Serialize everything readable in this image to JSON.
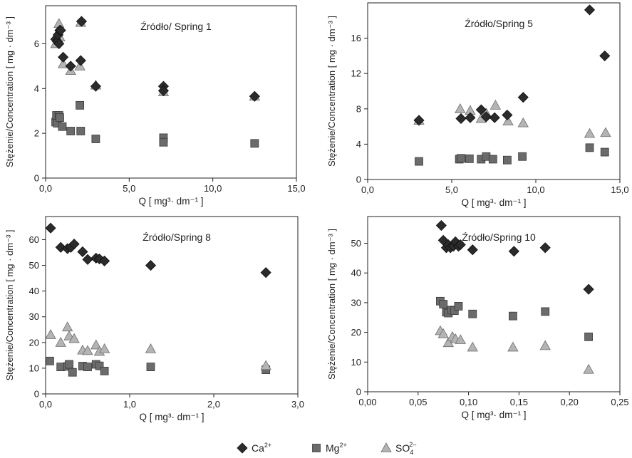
{
  "legend": [
    {
      "label": "Ca",
      "sup": "2+",
      "sub": "",
      "marker": "diamond",
      "color": "#2b2b2b"
    },
    {
      "label": "Mg",
      "sup": "2+",
      "sub": "",
      "marker": "square",
      "color": "#6b6b6b"
    },
    {
      "label": "SO",
      "sup": "2–",
      "sub": "4",
      "marker": "triangle",
      "color": "#b4b4b4"
    }
  ],
  "chart_data": [
    {
      "type": "scatter",
      "title": "Źródło/ Spring 1",
      "xlabel": "Q [ mg³· dm⁻¹ ]",
      "ylabel": "Stężenie/Concentration [ mg · dm⁻³ ]",
      "xlim": [
        0,
        15
      ],
      "ylim": [
        0,
        7.7
      ],
      "xticks": [
        0,
        5,
        10,
        15
      ],
      "xtick_labels": [
        "0,0",
        "5,0",
        "10,0",
        "15,0"
      ],
      "yticks": [
        0,
        2,
        4,
        6
      ],
      "ytick_labels": [
        "0",
        "2",
        "4",
        "6"
      ],
      "series": [
        {
          "name": "Ca2+",
          "x": [
            0.6,
            0.7,
            0.75,
            0.8,
            0.85,
            0.9,
            1.05,
            1.5,
            2.1,
            2.15,
            3.0,
            7.05,
            7.05,
            12.5
          ],
          "y": [
            6.2,
            6.1,
            6.4,
            6.0,
            6.6,
            6.6,
            5.4,
            5.0,
            5.25,
            7.0,
            4.1,
            4.1,
            3.9,
            3.65
          ]
        },
        {
          "name": "Mg2+",
          "x": [
            0.6,
            0.65,
            0.7,
            0.8,
            0.85,
            1.0,
            1.5,
            2.05,
            2.1,
            3.0,
            7.05,
            7.05,
            12.5
          ],
          "y": [
            2.5,
            2.8,
            2.45,
            2.8,
            2.7,
            2.3,
            2.1,
            3.25,
            2.1,
            1.75,
            1.8,
            1.6,
            1.55
          ]
        },
        {
          "name": "SO42-",
          "x": [
            0.6,
            0.7,
            0.75,
            0.8,
            0.85,
            1.05,
            1.5,
            2.05,
            2.1,
            3.0,
            7.05,
            12.5
          ],
          "y": [
            6.0,
            6.45,
            6.2,
            6.9,
            6.3,
            5.1,
            4.8,
            5.0,
            6.95,
            4.15,
            3.85,
            3.65
          ]
        }
      ]
    },
    {
      "type": "scatter",
      "title": "Źródło/Spring 5",
      "xlabel": "Q [ mg³· dm⁻¹ ]",
      "ylabel": "Stężenie/Concentration [ mg · dm⁻³ ]",
      "xlim": [
        0,
        15
      ],
      "ylim": [
        0,
        20
      ],
      "xticks": [
        0,
        5,
        10,
        15
      ],
      "xtick_labels": [
        "0,0",
        "5,0",
        "10,0",
        "15,0"
      ],
      "yticks": [
        0,
        4,
        8,
        12,
        16
      ],
      "ytick_labels": [
        "0",
        "4",
        "8",
        "12",
        "16"
      ],
      "series": [
        {
          "name": "Ca2+",
          "x": [
            3.05,
            5.55,
            6.1,
            6.75,
            7.05,
            7.55,
            8.3,
            9.25,
            13.2,
            14.1
          ],
          "y": [
            6.7,
            6.9,
            7.0,
            7.9,
            7.1,
            7.0,
            7.3,
            9.3,
            19.2,
            14.0
          ]
        },
        {
          "name": "Mg2+",
          "x": [
            3.05,
            5.45,
            5.55,
            6.05,
            6.75,
            7.05,
            7.45,
            8.3,
            9.2,
            13.2,
            14.1
          ],
          "y": [
            2.05,
            2.3,
            2.4,
            2.35,
            2.3,
            2.6,
            2.3,
            2.2,
            2.6,
            3.6,
            3.1
          ]
        },
        {
          "name": "SO42-",
          "x": [
            3.05,
            5.5,
            6.1,
            6.75,
            7.05,
            7.6,
            8.35,
            9.25,
            13.2,
            14.15
          ],
          "y": [
            6.7,
            8.0,
            7.8,
            6.9,
            7.5,
            8.4,
            6.6,
            6.4,
            5.2,
            5.3
          ]
        }
      ]
    },
    {
      "type": "scatter",
      "title": "Źródło/Spring 8",
      "xlabel": "Q [ mg³· dm⁻¹ ]",
      "ylabel": "Stężenie/Concentration [ mg · dm⁻³ ]",
      "xlim": [
        0,
        3
      ],
      "ylim": [
        0,
        69
      ],
      "xticks": [
        0,
        1,
        2,
        3
      ],
      "xtick_labels": [
        "0,0",
        "1,0",
        "2,0",
        "3,0"
      ],
      "yticks": [
        0,
        10,
        20,
        30,
        40,
        50,
        60
      ],
      "ytick_labels": [
        "0",
        "10",
        "20",
        "30",
        "40",
        "50",
        "60"
      ],
      "series": [
        {
          "name": "Ca2+",
          "x": [
            0.06,
            0.18,
            0.26,
            0.3,
            0.34,
            0.44,
            0.5,
            0.6,
            0.64,
            0.7,
            1.25,
            2.62
          ],
          "y": [
            64.5,
            57.0,
            56.5,
            57.0,
            58.3,
            55.3,
            52.3,
            52.8,
            52.5,
            51.7,
            50.0,
            47.2
          ]
        },
        {
          "name": "Mg2+",
          "x": [
            0.05,
            0.18,
            0.26,
            0.28,
            0.32,
            0.44,
            0.5,
            0.6,
            0.64,
            0.7,
            1.25,
            2.62
          ],
          "y": [
            12.8,
            10.5,
            10.7,
            11.5,
            8.4,
            10.8,
            10.5,
            11.5,
            10.9,
            8.9,
            10.5,
            9.4
          ]
        },
        {
          "name": "SO42-",
          "x": [
            0.06,
            0.18,
            0.26,
            0.28,
            0.34,
            0.44,
            0.5,
            0.6,
            0.64,
            0.7,
            1.25,
            2.62
          ],
          "y": [
            23.0,
            20.0,
            26.0,
            22.5,
            21.5,
            17.0,
            16.8,
            19.0,
            16.5,
            17.5,
            17.5,
            11.0
          ]
        }
      ]
    },
    {
      "type": "scatter",
      "title": "Źródło/Spring 10",
      "xlabel": "Q [ mg³· dm⁻¹ ]",
      "ylabel": "Stężenie/Concentration [ mg · dm⁻³ ]",
      "xlim": [
        0,
        0.25
      ],
      "ylim": [
        0,
        59
      ],
      "xticks": [
        0,
        0.05,
        0.1,
        0.15,
        0.2,
        0.25
      ],
      "xtick_labels": [
        "0,00",
        "0,05",
        "0,10",
        "0,15",
        "0,20",
        "0,25"
      ],
      "yticks": [
        0,
        10,
        20,
        30,
        40,
        50
      ],
      "ytick_labels": [
        "0",
        "10",
        "20",
        "30",
        "40",
        "50"
      ],
      "series": [
        {
          "name": "Ca2+",
          "x": [
            0.073,
            0.075,
            0.078,
            0.08,
            0.082,
            0.085,
            0.087,
            0.09,
            0.092,
            0.104,
            0.145,
            0.176,
            0.219
          ],
          "y": [
            56.0,
            51.0,
            48.5,
            49.5,
            48.5,
            49.0,
            50.5,
            49.0,
            49.5,
            47.8,
            47.3,
            48.5,
            34.5
          ]
        },
        {
          "name": "Mg2+",
          "x": [
            0.072,
            0.075,
            0.078,
            0.08,
            0.083,
            0.086,
            0.09,
            0.104,
            0.144,
            0.176,
            0.219
          ],
          "y": [
            30.5,
            29.5,
            26.8,
            26.5,
            27.5,
            27.3,
            28.8,
            26.2,
            25.5,
            27.0,
            18.5
          ]
        },
        {
          "name": "SO42-",
          "x": [
            0.072,
            0.075,
            0.08,
            0.084,
            0.087,
            0.092,
            0.104,
            0.144,
            0.176,
            0.219
          ],
          "y": [
            20.5,
            19.5,
            16.5,
            18.5,
            17.8,
            17.5,
            15.0,
            15.0,
            15.5,
            7.5
          ]
        }
      ]
    }
  ]
}
